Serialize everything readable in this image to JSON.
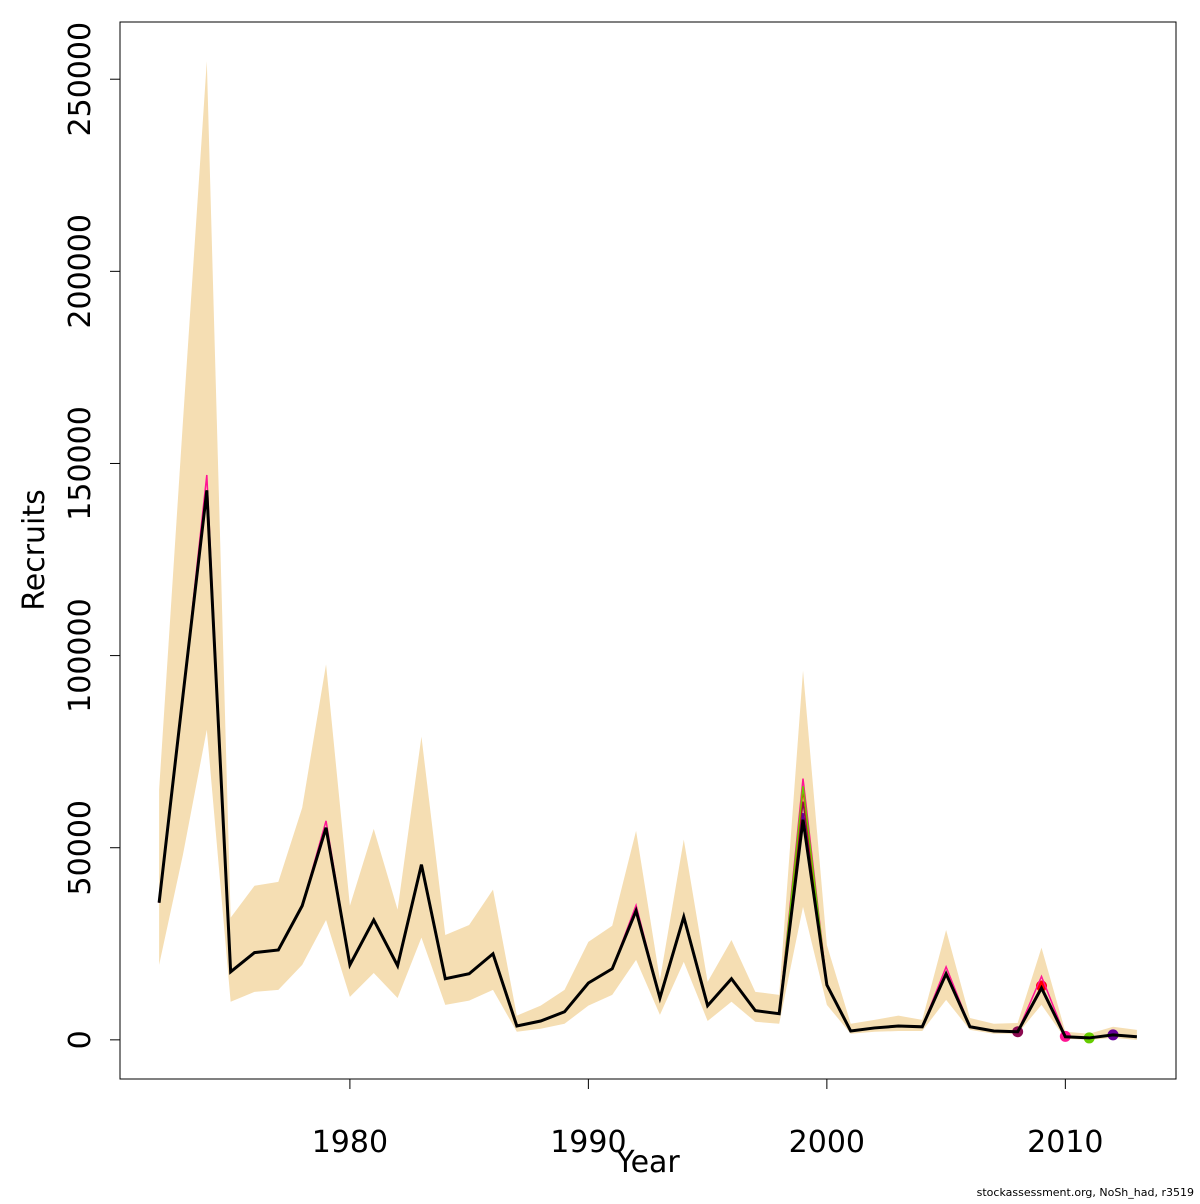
{
  "chart_data": {
    "type": "line",
    "x_label": "Year",
    "y_label": "Recruits",
    "footnote": "stockassessment.org, NoSh_had, r3519",
    "x": [
      1972,
      1973,
      1974,
      1975,
      1976,
      1977,
      1978,
      1979,
      1980,
      1981,
      1982,
      1983,
      1984,
      1985,
      1986,
      1987,
      1988,
      1989,
      1990,
      1991,
      1992,
      1993,
      1994,
      1995,
      1996,
      1997,
      1998,
      1999,
      2000,
      2001,
      2002,
      2003,
      2004,
      2005,
      2006,
      2007,
      2008,
      2009,
      2010,
      2011,
      2012,
      2013
    ],
    "band": {
      "color": "#f5deb3",
      "upper": [
        65100,
        161000,
        254700,
        31800,
        40100,
        41100,
        60400,
        97700,
        34900,
        54900,
        33900,
        78900,
        27300,
        29900,
        39100,
        6300,
        8900,
        13000,
        25500,
        29700,
        54400,
        15600,
        52100,
        15100,
        26000,
        12500,
        11700,
        96100,
        24700,
        4200,
        5200,
        6300,
        5200,
        28600,
        5700,
        4200,
        4400,
        24000,
        2100,
        1600,
        3400,
        2600
      ],
      "lower": [
        19500,
        48200,
        80700,
        9900,
        12500,
        13000,
        19500,
        31200,
        11200,
        17400,
        10900,
        26600,
        9100,
        10200,
        13000,
        2100,
        2900,
        4200,
        8900,
        11700,
        20800,
        6500,
        20300,
        4900,
        9900,
        4700,
        4200,
        34600,
        9100,
        1600,
        2100,
        2300,
        2300,
        10400,
        2600,
        1600,
        1600,
        9100,
        300,
        0,
        500,
        0
      ]
    },
    "series": [
      {
        "color": "#8b0a50",
        "values": [
          35700,
          89600,
          143000,
          17700,
          22700,
          23400,
          34900,
          55200,
          19500,
          31200,
          19300,
          45600,
          15900,
          17200,
          22400,
          3600,
          4900,
          7300,
          14800,
          18500,
          33600,
          10900,
          32000,
          8900,
          15900,
          7600,
          6800,
          62000,
          14300,
          2300,
          3100,
          3600,
          3400,
          17200,
          3400,
          2300,
          2100,
          null,
          null,
          null,
          null,
          null
        ]
      },
      {
        "color": "#ff0000",
        "values": [
          35700,
          89600,
          143000,
          17700,
          22700,
          23400,
          34900,
          55200,
          19500,
          31200,
          19300,
          45600,
          15900,
          17200,
          22400,
          3600,
          4900,
          7300,
          14800,
          18500,
          33600,
          10900,
          32000,
          8900,
          15900,
          7600,
          6800,
          65000,
          14300,
          2300,
          3100,
          3600,
          3400,
          17200,
          3400,
          2300,
          2100,
          14000,
          null,
          null,
          null,
          null
        ]
      },
      {
        "color": "#ff1493",
        "values": [
          35700,
          89600,
          147000,
          17700,
          22700,
          23400,
          34900,
          57000,
          19500,
          31200,
          19300,
          45600,
          15900,
          17200,
          22400,
          3600,
          4900,
          7300,
          14800,
          18500,
          35000,
          10900,
          32000,
          8900,
          15900,
          7600,
          6800,
          68000,
          14300,
          2300,
          3100,
          3600,
          3400,
          19000,
          3400,
          2300,
          2100,
          16500,
          900,
          null,
          null,
          null
        ]
      },
      {
        "color": "#66cc00",
        "values": [
          35700,
          89600,
          143000,
          17700,
          22700,
          23400,
          34900,
          55200,
          19500,
          31200,
          19300,
          45600,
          15900,
          17200,
          22400,
          3600,
          4900,
          7300,
          14800,
          18500,
          33600,
          10900,
          32000,
          8900,
          15900,
          7600,
          6800,
          66000,
          14300,
          2300,
          3100,
          3600,
          3400,
          17200,
          3400,
          2300,
          2100,
          13500,
          800,
          500,
          null,
          null
        ]
      },
      {
        "color": "#660099",
        "values": [
          35700,
          89600,
          143000,
          17700,
          22700,
          23400,
          34900,
          55200,
          19500,
          31200,
          19300,
          45600,
          15900,
          17200,
          22400,
          3600,
          4900,
          7300,
          14800,
          18500,
          33600,
          10900,
          32000,
          8900,
          15900,
          7600,
          6800,
          59000,
          14300,
          2300,
          3100,
          3600,
          3400,
          17200,
          3400,
          2300,
          2100,
          13500,
          800,
          500,
          1300,
          null
        ]
      },
      {
        "color": "#000000",
        "values": [
          35700,
          89600,
          143000,
          17700,
          22700,
          23400,
          34900,
          55200,
          19500,
          31200,
          19300,
          45600,
          15900,
          17200,
          22400,
          3600,
          4900,
          7300,
          14800,
          18500,
          33600,
          10900,
          32000,
          8900,
          15900,
          7600,
          6800,
          57300,
          14300,
          2300,
          3100,
          3600,
          3400,
          17200,
          3400,
          2300,
          2100,
          13500,
          800,
          500,
          1300,
          800
        ]
      }
    ],
    "xlim": [
      1970.36,
      2014.64
    ],
    "xticks": [
      1980,
      1990,
      2000,
      2010
    ],
    "ylim": [
      -10188,
      264888
    ],
    "yticks": [
      0,
      50000,
      100000,
      150000,
      200000,
      250000
    ]
  }
}
